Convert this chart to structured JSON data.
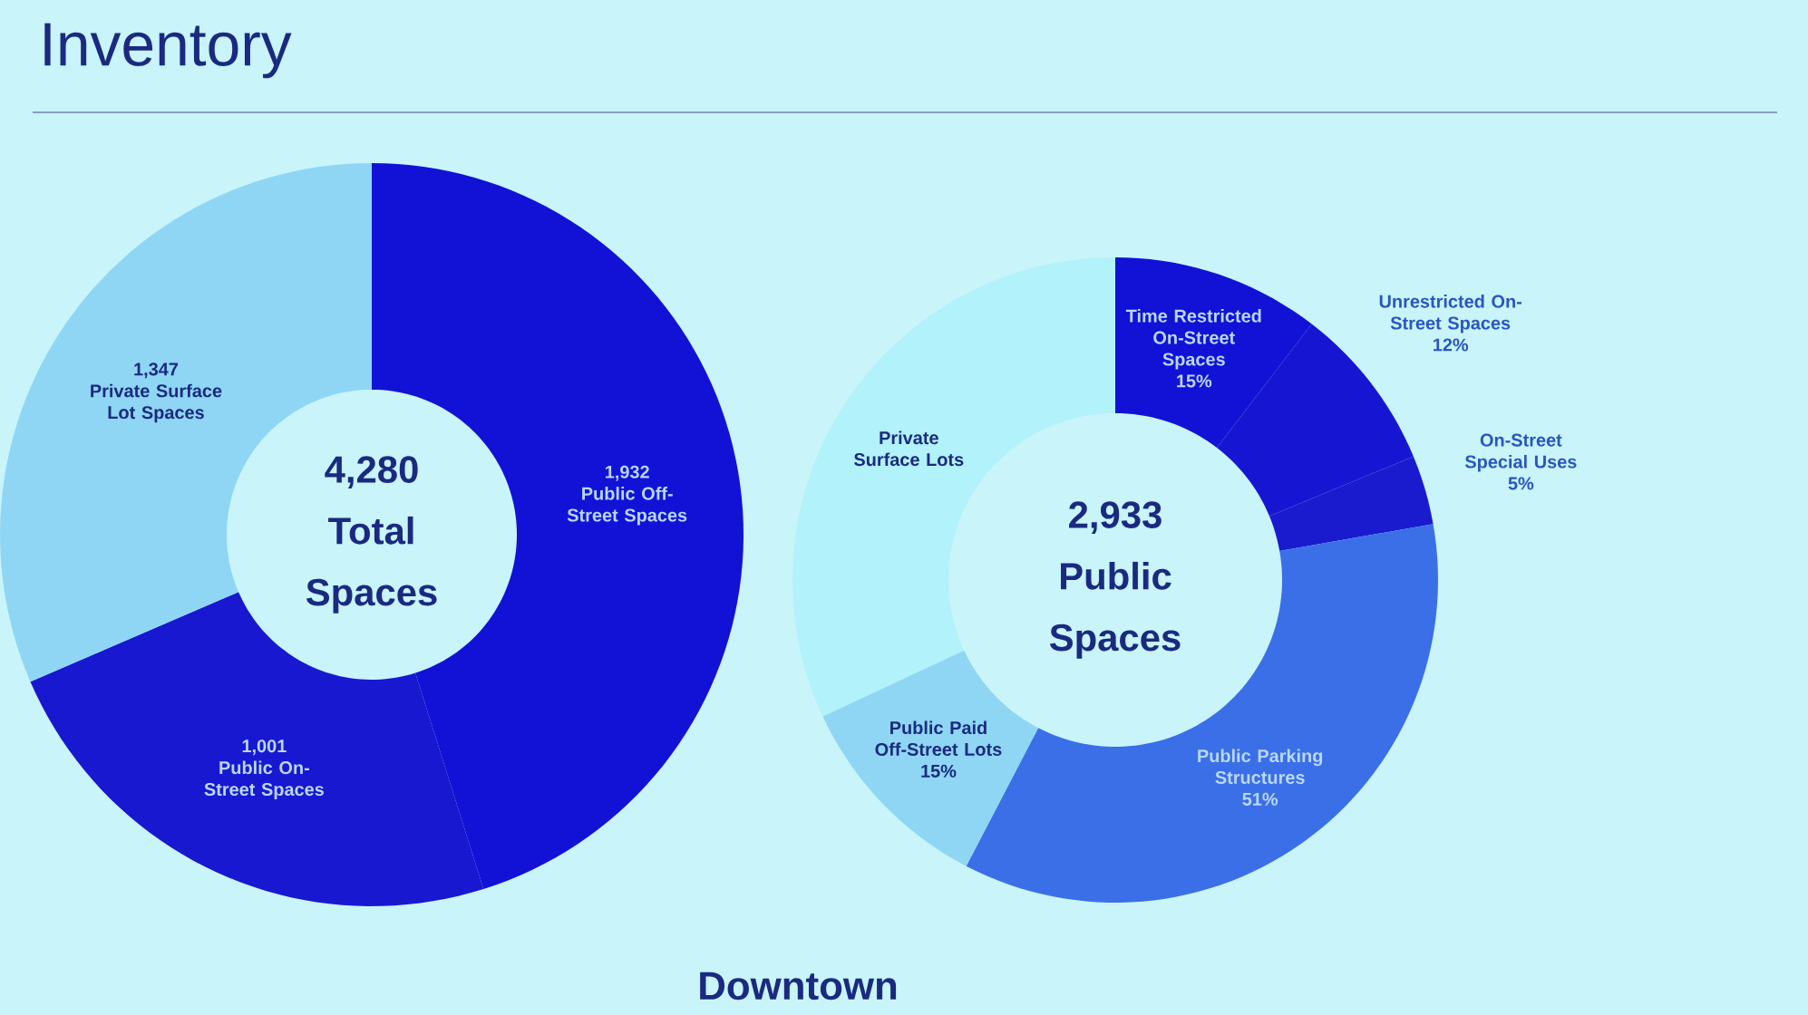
{
  "chart_data": [
    {
      "type": "donut",
      "title": "Inventory",
      "categories": [
        "Public Off-Street Spaces",
        "Public On-Street Spaces",
        "Private Surface Lot Spaces"
      ],
      "values": [
        1932,
        1001,
        1347
      ],
      "value_labels": [
        "1,932",
        "1,001",
        "1,347"
      ],
      "colors": [
        "#1212d6",
        "#1818d0",
        "#8fd6f4"
      ],
      "annotations": [
        "4,280 Total Spaces",
        "Downtown"
      ]
    },
    {
      "type": "donut",
      "categories": [
        "Time Restricted On-Street Spaces",
        "Unrestricted On-Street Spaces",
        "On-Street Special Uses",
        "Public Parking Structures",
        "Public Paid Off-Street Lots",
        "Private Surface Lots"
      ],
      "values": [
        15,
        12,
        5,
        51,
        15,
        46
      ],
      "value_labels": [
        "15%",
        "12%",
        "5%",
        "51%",
        "15%",
        null
      ],
      "colors": [
        "#1212d6",
        "#1616d2",
        "#1a1ace",
        "#3b6fe8",
        "#8fd6f4",
        "#b2f2fa"
      ],
      "annotations": [
        "2,933 Public Spaces"
      ]
    }
  ]
}
